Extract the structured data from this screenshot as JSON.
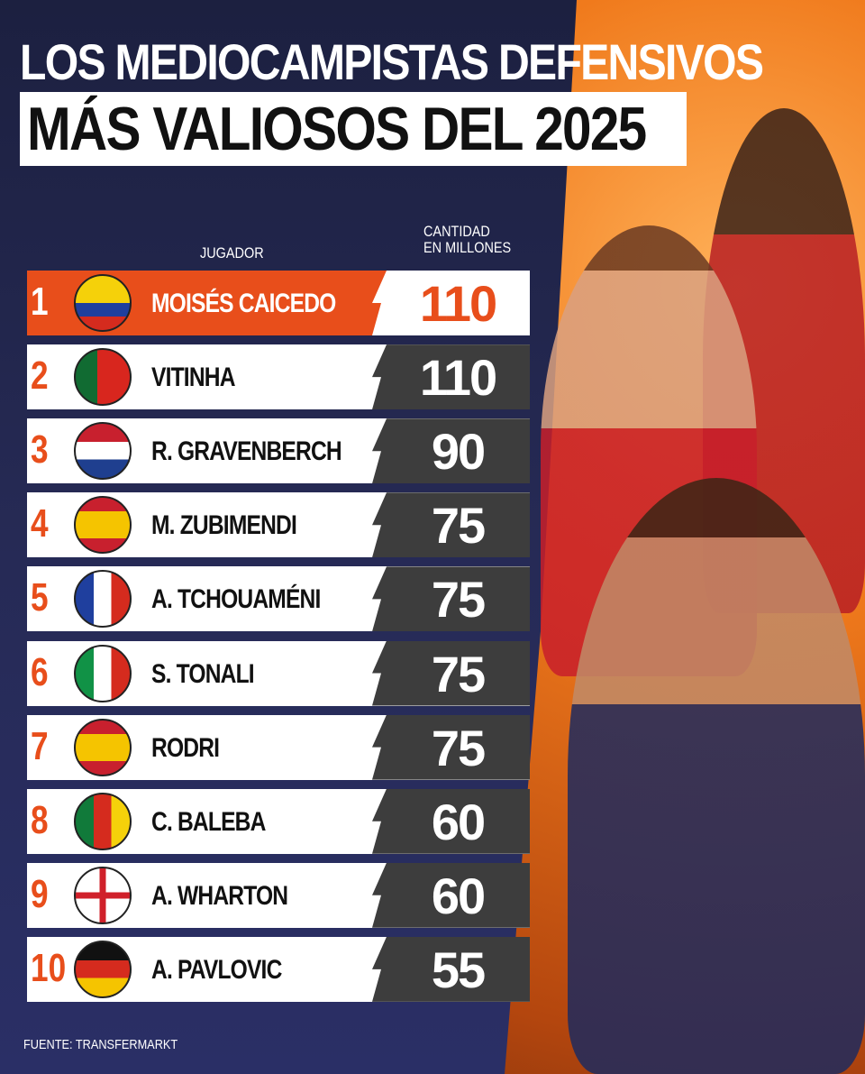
{
  "title_line1": "LOS MEDIOCAMPISTAS DEFENSIVOS",
  "title_line2": "MÁS VALIOSOS DEL 2025",
  "header_player": "JUGADOR",
  "header_value_line1": "CANTIDAD",
  "header_value_line2": "EN MILLONES",
  "source": "FUENTE: TRANSFERMARKT",
  "colors": {
    "accent": "#e84e1b",
    "dark_panel": "#3d3d3d",
    "background": "#1c2040"
  },
  "chart_data": {
    "type": "table",
    "columns": [
      "JUGADOR",
      "CANTIDAD EN MILLONES"
    ],
    "rows": [
      {
        "rank": "1",
        "country": "Ecuador",
        "name": "MOISÉS CAICEDO",
        "value": "110"
      },
      {
        "rank": "2",
        "country": "Portugal",
        "name": "VITINHA",
        "value": "110"
      },
      {
        "rank": "3",
        "country": "Netherlands",
        "name": "R. GRAVENBERCH",
        "value": "90"
      },
      {
        "rank": "4",
        "country": "Spain",
        "name": "M. ZUBIMENDI",
        "value": "75"
      },
      {
        "rank": "5",
        "country": "France",
        "name": "A. TCHOUAMÉNI",
        "value": "75"
      },
      {
        "rank": "6",
        "country": "Italy",
        "name": "S. TONALI",
        "value": "75"
      },
      {
        "rank": "7",
        "country": "Spain",
        "name": "RODRI",
        "value": "75"
      },
      {
        "rank": "8",
        "country": "Cameroon",
        "name": "C. BALEBA",
        "value": "60"
      },
      {
        "rank": "9",
        "country": "England",
        "name": "A. WHARTON",
        "value": "60"
      },
      {
        "rank": "10",
        "country": "Germany",
        "name": "A. PAVLOVIC",
        "value": "55"
      }
    ]
  }
}
